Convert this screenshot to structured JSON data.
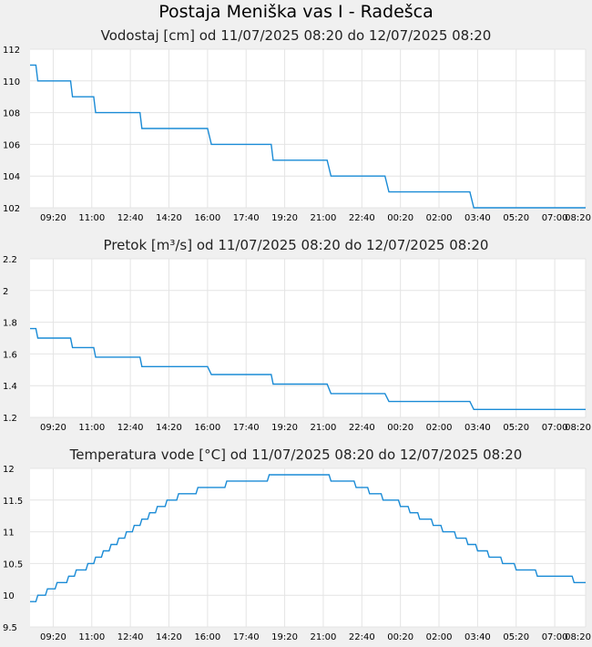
{
  "page": {
    "title": "Postaja Meniška vas I - Radešca"
  },
  "colors": {
    "series": "#1a8bd6",
    "grid": "#e4e4e4",
    "background": "#f0f0f0",
    "plot": "#ffffff"
  },
  "chart_data": [
    {
      "type": "line",
      "title": "Vodostaj [cm] od 11/07/2025 08:20 do 12/07/2025 08:20",
      "ylim": [
        102,
        112
      ],
      "yticks": [
        "102",
        "104",
        "106",
        "108",
        "110",
        "112"
      ],
      "xlim": [
        "11/07/2025 08:20",
        "12/07/2025 08:20"
      ],
      "xticks": [
        "09:20",
        "11:00",
        "12:40",
        "14:20",
        "16:00",
        "17:40",
        "19:20",
        "21:00",
        "22:40",
        "00:20",
        "02:00",
        "03:40",
        "05:20",
        "07:00",
        "08:20"
      ],
      "grid": true,
      "series": [
        {
          "points": [
            [
              "11/07/2025 08:20",
              111
            ],
            [
              "11/07/2025 08:35",
              111
            ],
            [
              "11/07/2025 08:40",
              110
            ],
            [
              "11/07/2025 10:05",
              110
            ],
            [
              "11/07/2025 10:10",
              109
            ],
            [
              "11/07/2025 11:05",
              109
            ],
            [
              "11/07/2025 11:10",
              108
            ],
            [
              "11/07/2025 13:05",
              108
            ],
            [
              "11/07/2025 13:10",
              107
            ],
            [
              "11/07/2025 16:00",
              107
            ],
            [
              "11/07/2025 16:10",
              106
            ],
            [
              "11/07/2025 18:45",
              106
            ],
            [
              "11/07/2025 18:50",
              105
            ],
            [
              "11/07/2025 21:10",
              105
            ],
            [
              "11/07/2025 21:20",
              104
            ],
            [
              "11/07/2025 23:40",
              104
            ],
            [
              "11/07/2025 23:50",
              103
            ],
            [
              "12/07/2025 03:20",
              103
            ],
            [
              "12/07/2025 03:30",
              102
            ],
            [
              "12/07/2025 08:20",
              102
            ]
          ]
        }
      ]
    },
    {
      "type": "line",
      "title": "Pretok [m³/s] od 11/07/2025 08:20 do 12/07/2025 08:20",
      "ylim": [
        1.2,
        2.2
      ],
      "yticks": [
        "1.2",
        "1.4",
        "1.6",
        "1.8",
        "2",
        "2.2"
      ],
      "xlim": [
        "11/07/2025 08:20",
        "12/07/2025 08:20"
      ],
      "xticks": [
        "09:20",
        "11:00",
        "12:40",
        "14:20",
        "16:00",
        "17:40",
        "19:20",
        "21:00",
        "22:40",
        "00:20",
        "02:00",
        "03:40",
        "05:20",
        "07:00",
        "08:20"
      ],
      "grid": true,
      "series": [
        {
          "points": [
            [
              "11/07/2025 08:20",
              1.76
            ],
            [
              "11/07/2025 08:35",
              1.76
            ],
            [
              "11/07/2025 08:40",
              1.7
            ],
            [
              "11/07/2025 10:05",
              1.7
            ],
            [
              "11/07/2025 10:10",
              1.64
            ],
            [
              "11/07/2025 11:05",
              1.64
            ],
            [
              "11/07/2025 11:10",
              1.58
            ],
            [
              "11/07/2025 13:05",
              1.58
            ],
            [
              "11/07/2025 13:10",
              1.52
            ],
            [
              "11/07/2025 16:00",
              1.52
            ],
            [
              "11/07/2025 16:10",
              1.47
            ],
            [
              "11/07/2025 18:45",
              1.47
            ],
            [
              "11/07/2025 18:50",
              1.41
            ],
            [
              "11/07/2025 21:10",
              1.41
            ],
            [
              "11/07/2025 21:20",
              1.35
            ],
            [
              "11/07/2025 23:40",
              1.35
            ],
            [
              "11/07/2025 23:50",
              1.3
            ],
            [
              "12/07/2025 03:20",
              1.3
            ],
            [
              "12/07/2025 03:30",
              1.25
            ],
            [
              "12/07/2025 08:20",
              1.25
            ]
          ]
        }
      ]
    },
    {
      "type": "line",
      "title": "Temperatura vode [°C] od 11/07/2025 08:20 do 12/07/2025 08:20",
      "ylim": [
        9.5,
        12
      ],
      "yticks": [
        "9.5",
        "10",
        "10.5",
        "11",
        "11.5",
        "12"
      ],
      "xlim": [
        "11/07/2025 08:20",
        "12/07/2025 08:20"
      ],
      "xticks": [
        "09:20",
        "11:00",
        "12:40",
        "14:20",
        "16:00",
        "17:40",
        "19:20",
        "21:00",
        "22:40",
        "00:20",
        "02:00",
        "03:40",
        "05:20",
        "07:00",
        "08:20"
      ],
      "grid": true,
      "series": [
        {
          "points": [
            [
              "11/07/2025 08:20",
              9.9
            ],
            [
              "11/07/2025 08:35",
              9.9
            ],
            [
              "11/07/2025 08:40",
              10.0
            ],
            [
              "11/07/2025 09:00",
              10.0
            ],
            [
              "11/07/2025 09:05",
              10.1
            ],
            [
              "11/07/2025 09:25",
              10.1
            ],
            [
              "11/07/2025 09:30",
              10.2
            ],
            [
              "11/07/2025 09:55",
              10.2
            ],
            [
              "11/07/2025 10:00",
              10.3
            ],
            [
              "11/07/2025 10:15",
              10.3
            ],
            [
              "11/07/2025 10:20",
              10.4
            ],
            [
              "11/07/2025 10:45",
              10.4
            ],
            [
              "11/07/2025 10:50",
              10.5
            ],
            [
              "11/07/2025 11:05",
              10.5
            ],
            [
              "11/07/2025 11:10",
              10.6
            ],
            [
              "11/07/2025 11:25",
              10.6
            ],
            [
              "11/07/2025 11:30",
              10.7
            ],
            [
              "11/07/2025 11:45",
              10.7
            ],
            [
              "11/07/2025 11:50",
              10.8
            ],
            [
              "11/07/2025 12:05",
              10.8
            ],
            [
              "11/07/2025 12:10",
              10.9
            ],
            [
              "11/07/2025 12:25",
              10.9
            ],
            [
              "11/07/2025 12:30",
              11.0
            ],
            [
              "11/07/2025 12:45",
              11.0
            ],
            [
              "11/07/2025 12:50",
              11.1
            ],
            [
              "11/07/2025 13:05",
              11.1
            ],
            [
              "11/07/2025 13:10",
              11.2
            ],
            [
              "11/07/2025 13:25",
              11.2
            ],
            [
              "11/07/2025 13:30",
              11.3
            ],
            [
              "11/07/2025 13:45",
              11.3
            ],
            [
              "11/07/2025 13:50",
              11.4
            ],
            [
              "11/07/2025 14:10",
              11.4
            ],
            [
              "11/07/2025 14:15",
              11.5
            ],
            [
              "11/07/2025 14:40",
              11.5
            ],
            [
              "11/07/2025 14:45",
              11.6
            ],
            [
              "11/07/2025 15:30",
              11.6
            ],
            [
              "11/07/2025 15:35",
              11.7
            ],
            [
              "11/07/2025 16:45",
              11.7
            ],
            [
              "11/07/2025 16:50",
              11.8
            ],
            [
              "11/07/2025 18:35",
              11.8
            ],
            [
              "11/07/2025 18:40",
              11.9
            ],
            [
              "11/07/2025 21:15",
              11.9
            ],
            [
              "11/07/2025 21:20",
              11.8
            ],
            [
              "11/07/2025 22:20",
              11.8
            ],
            [
              "11/07/2025 22:25",
              11.7
            ],
            [
              "11/07/2025 22:55",
              11.7
            ],
            [
              "11/07/2025 23:00",
              11.6
            ],
            [
              "11/07/2025 23:30",
              11.6
            ],
            [
              "11/07/2025 23:35",
              11.5
            ],
            [
              "12/07/2025 00:15",
              11.5
            ],
            [
              "12/07/2025 00:20",
              11.4
            ],
            [
              "12/07/2025 00:40",
              11.4
            ],
            [
              "12/07/2025 00:45",
              11.3
            ],
            [
              "12/07/2025 01:05",
              11.3
            ],
            [
              "12/07/2025 01:10",
              11.2
            ],
            [
              "12/07/2025 01:40",
              11.2
            ],
            [
              "12/07/2025 01:45",
              11.1
            ],
            [
              "12/07/2025 02:05",
              11.1
            ],
            [
              "12/07/2025 02:10",
              11.0
            ],
            [
              "12/07/2025 02:40",
              11.0
            ],
            [
              "12/07/2025 02:45",
              10.9
            ],
            [
              "12/07/2025 03:10",
              10.9
            ],
            [
              "12/07/2025 03:15",
              10.8
            ],
            [
              "12/07/2025 03:35",
              10.8
            ],
            [
              "12/07/2025 03:40",
              10.7
            ],
            [
              "12/07/2025 04:05",
              10.7
            ],
            [
              "12/07/2025 04:10",
              10.6
            ],
            [
              "12/07/2025 04:40",
              10.6
            ],
            [
              "12/07/2025 04:45",
              10.5
            ],
            [
              "12/07/2025 05:15",
              10.5
            ],
            [
              "12/07/2025 05:20",
              10.4
            ],
            [
              "12/07/2025 06:10",
              10.4
            ],
            [
              "12/07/2025 06:15",
              10.3
            ],
            [
              "12/07/2025 07:45",
              10.3
            ],
            [
              "12/07/2025 07:50",
              10.2
            ],
            [
              "12/07/2025 08:20",
              10.2
            ]
          ]
        }
      ]
    }
  ]
}
